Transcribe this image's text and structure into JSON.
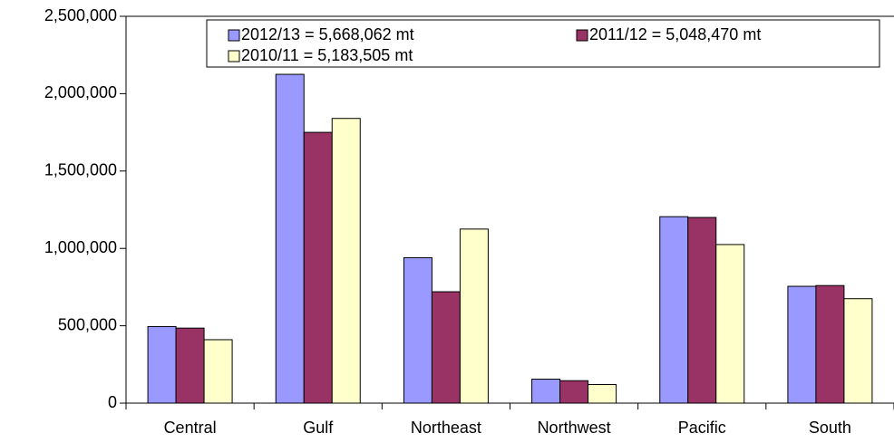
{
  "chart_data": {
    "type": "bar",
    "categories": [
      "Central",
      "Gulf",
      "Northeast",
      "Northwest",
      "Pacific",
      "South"
    ],
    "series": [
      {
        "name": "2012/13 = 5,668,062 mt",
        "color": "#9999ff",
        "values": [
          495000,
          2125000,
          940000,
          155000,
          1205000,
          755000
        ]
      },
      {
        "name": "2011/12 = 5,048,470 mt",
        "color": "#993366",
        "values": [
          485000,
          1750000,
          720000,
          145000,
          1200000,
          760000
        ]
      },
      {
        "name": "2010/11 = 5,183,505 mt",
        "color": "#ffffcc",
        "values": [
          410000,
          1840000,
          1125000,
          120000,
          1025000,
          675000
        ]
      }
    ],
    "ylim": [
      0,
      2500000
    ],
    "yticks": [
      0,
      {
        "value": 500000,
        "label": "500,000"
      },
      {
        "value": 1000000,
        "label": "1,000,000"
      },
      {
        "value": 1500000,
        "label": "1,500,000"
      },
      {
        "value": 2000000,
        "label": "2,000,000"
      },
      {
        "value": 2500000,
        "label": "2,500,000"
      }
    ],
    "grid": false
  }
}
